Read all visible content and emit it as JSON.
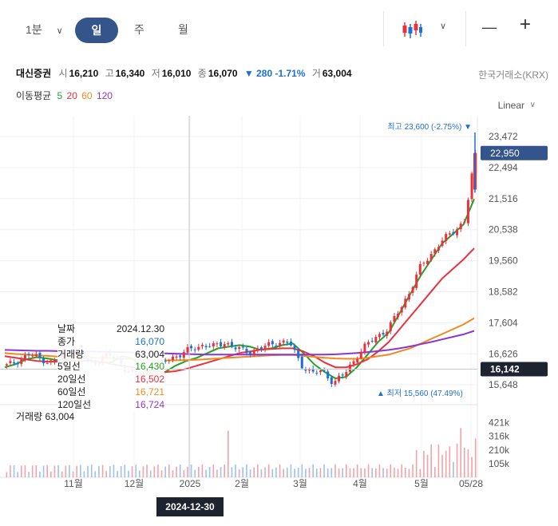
{
  "toolbar": {
    "period_select": "1분",
    "tabs": [
      "일",
      "주",
      "월"
    ],
    "active_tab": "일",
    "minus": "—",
    "plus": "+"
  },
  "stock": {
    "name": "대신증권",
    "open_label": "시",
    "open": "16,210",
    "high_label": "고",
    "high": "16,340",
    "low_label": "저",
    "low": "16,010",
    "close_label": "종",
    "close": "16,070",
    "change": "▼ 280 -1.71%",
    "volume_label": "거",
    "volume": "63,004",
    "exchange": "한국거래소(KRX)"
  },
  "moving_average": {
    "label": "이동평균",
    "periods": [
      {
        "label": "5",
        "color": "#21a328"
      },
      {
        "label": "20",
        "color": "#e8323c"
      },
      {
        "label": "60",
        "color": "#f08a1e"
      },
      {
        "label": "120",
        "color": "#8a36d6"
      }
    ]
  },
  "scale_label": "Linear",
  "tooltip": {
    "rows": [
      {
        "label": "날짜",
        "value": "2024.12.30",
        "color": "#222222"
      },
      {
        "label": "종가",
        "value": "16,070",
        "color": "#1e6fd6"
      },
      {
        "label": "거래량",
        "value": "63,004",
        "color": "#222222"
      },
      {
        "label": "5일선",
        "value": "16,430",
        "color": "#21a328"
      },
      {
        "label": "20일선",
        "value": "16,502",
        "color": "#e8323c"
      },
      {
        "label": "60일선",
        "value": "16,721",
        "color": "#f08a1e"
      },
      {
        "label": "120일선",
        "value": "16,724",
        "color": "#8a36d6"
      }
    ]
  },
  "crosshair_date": "2024-12-30",
  "chart_data": {
    "type": "candlestick",
    "y_ticks": [
      "23,472",
      "22,494",
      "21,516",
      "20,538",
      "19,560",
      "18,582",
      "17,604",
      "16,626",
      "15,648"
    ],
    "y_range": [
      15200,
      24000
    ],
    "current_price_label": "22,950",
    "crosshair_price_label": "16,142",
    "high_annotation": "최고 23,600 (-2.75%)",
    "low_annotation": "최저 15,560 (47.49%)",
    "x_labels": [
      "11월",
      "12월",
      "2025",
      "2월",
      "3월",
      "4월",
      "5월",
      "05/28"
    ],
    "volume_label": "거래량 63,004",
    "volume_ticks": [
      "421k",
      "316k",
      "210k",
      "105k"
    ],
    "close_anchors": [
      16250,
      16400,
      16600,
      16500,
      16350,
      16500,
      16700,
      16500,
      16300,
      16600,
      16500,
      16100,
      15950,
      16100,
      16300,
      16500,
      16600,
      16800,
      16900,
      16850,
      17000,
      16800,
      16700,
      16750,
      16900,
      17000,
      16950,
      16300,
      16000,
      16100,
      15700,
      16000,
      16500,
      16900,
      17200,
      17400,
      18000,
      18600,
      19400,
      19800,
      20200,
      20500,
      20800,
      22950
    ],
    "ma_series": {
      "ma5": [
        16200,
        16300,
        16450,
        16520,
        16480,
        16420,
        16480,
        16600,
        16420,
        16350,
        16350,
        16550,
        16480,
        16150,
        15950,
        16050,
        16250,
        16400,
        16500,
        16650,
        16800,
        16850,
        16900,
        16850,
        16750,
        16800,
        16900,
        16950,
        16650,
        16300,
        16050,
        15850,
        15900,
        16200,
        16600,
        17000,
        17300,
        17900,
        18500,
        19100,
        19600,
        20100,
        20400,
        20700,
        21500
      ],
      "ma20": [
        16550,
        16500,
        16450,
        16400,
        16380,
        16380,
        16400,
        16420,
        16400,
        16380,
        16300,
        16250,
        16200,
        16150,
        16100,
        16050,
        16080,
        16150,
        16250,
        16350,
        16450,
        16550,
        16650,
        16700,
        16760,
        16780,
        16800,
        16800,
        16700,
        16550,
        16350,
        16200,
        16200,
        16300,
        16450,
        16700,
        17000,
        17400,
        17800,
        18200,
        18600,
        19000,
        19300,
        19600,
        19950
      ],
      "ma60": [
        16650,
        16620,
        16600,
        16580,
        16560,
        16540,
        16530,
        16520,
        16510,
        16500,
        16490,
        16470,
        16450,
        16430,
        16420,
        16420,
        16420,
        16430,
        16440,
        16460,
        16480,
        16500,
        16520,
        16540,
        16560,
        16580,
        16590,
        16590,
        16560,
        16530,
        16500,
        16480,
        16470,
        16470,
        16500,
        16550,
        16600,
        16700,
        16800,
        16950,
        17100,
        17250,
        17400,
        17550,
        17750
      ],
      "ma120": [
        16750,
        16740,
        16730,
        16720,
        16720,
        16710,
        16710,
        16700,
        16700,
        16690,
        16690,
        16680,
        16670,
        16660,
        16650,
        16640,
        16630,
        16620,
        16610,
        16600,
        16600,
        16600,
        16600,
        16600,
        16600,
        16600,
        16600,
        16600,
        16600,
        16600,
        16600,
        16610,
        16630,
        16650,
        16680,
        16710,
        16750,
        16800,
        16860,
        16930,
        17000,
        17080,
        17160,
        17240,
        17350
      ]
    },
    "up_color": "#e8323c",
    "down_color": "#1e6fd6"
  }
}
